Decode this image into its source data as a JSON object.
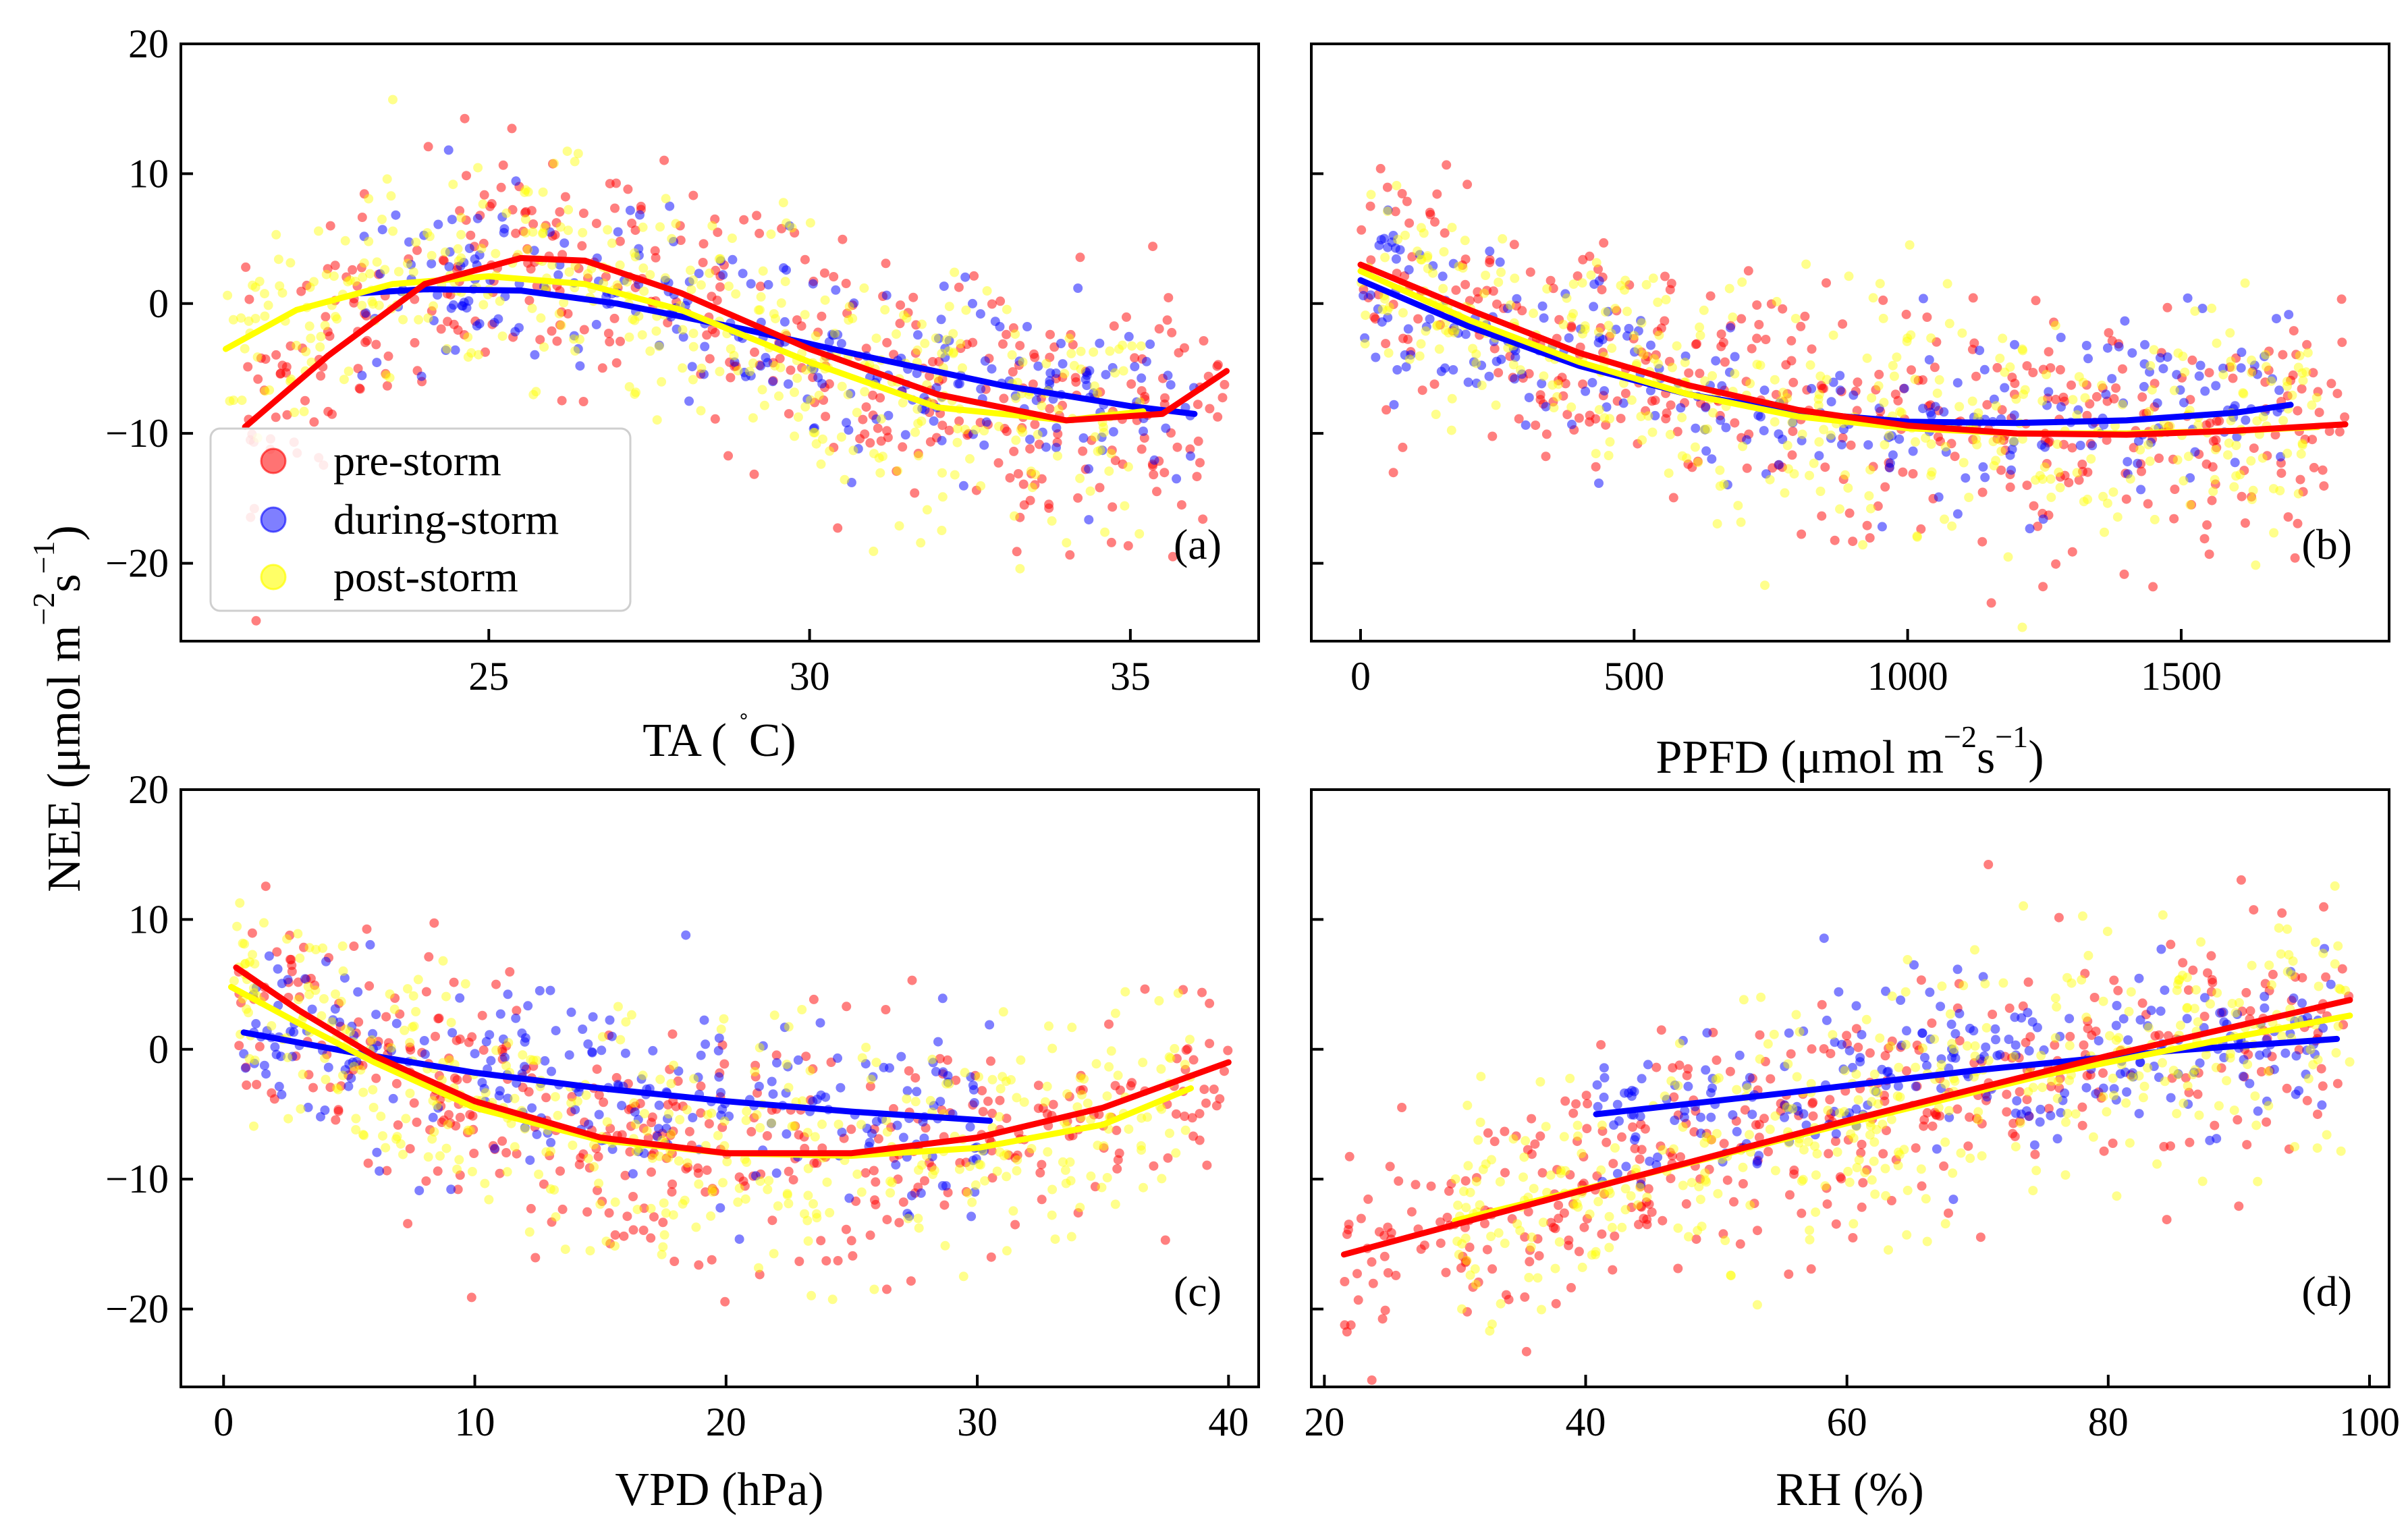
{
  "figure": {
    "ylabel": "NEE (μmol m⁻²s⁻¹)",
    "ylabel_parts": {
      "pre": "NEE (μmol m",
      "exp1": "−2",
      "mid": "s",
      "exp2": "−1",
      "post": ")"
    }
  },
  "legend": {
    "items": [
      {
        "label": "pre-storm",
        "color": "#ff0000"
      },
      {
        "label": "during-storm",
        "color": "#0000ff"
      },
      {
        "label": "post-storm",
        "color": "#ffff00"
      }
    ],
    "location": "lower-left of panel (a)"
  },
  "chart_data": [
    {
      "type": "scatter",
      "panel": "(a)",
      "xlabel": "TA ( ˚C)",
      "xlabel_parts": {
        "pre": "TA ( ",
        "deg": "˚",
        "post": "C)"
      },
      "ylabel": "NEE (μmol m⁻²s⁻¹)",
      "xlim": [
        20.2,
        37.0
      ],
      "ylim": [
        -26,
        20
      ],
      "xticks": [
        25,
        30,
        35
      ],
      "yticks": [
        20,
        10,
        0,
        -10,
        -20
      ],
      "series": [
        {
          "name": "pre-storm",
          "color": "#ff0000",
          "fit_x": [
            21.2,
            22.5,
            24.0,
            25.5,
            26.5,
            28.0,
            30.0,
            32.0,
            34.0,
            35.5,
            36.5
          ],
          "fit_y": [
            -9.5,
            -4.0,
            1.5,
            3.5,
            3.3,
            0.8,
            -3.5,
            -7.0,
            -9.0,
            -8.5,
            -5.2
          ]
        },
        {
          "name": "during-storm",
          "color": "#0000ff",
          "fit_x": [
            23.0,
            24.0,
            25.5,
            27.0,
            29.0,
            31.0,
            33.0,
            35.0,
            36.0
          ],
          "fit_y": [
            0.8,
            1.1,
            1.0,
            0.0,
            -2.0,
            -4.2,
            -6.3,
            -7.9,
            -8.5
          ]
        },
        {
          "name": "post-storm",
          "color": "#ffff00",
          "fit_x": [
            20.9,
            22.0,
            23.5,
            25.0,
            26.5,
            28.0,
            30.0,
            32.0,
            34.0,
            35.2
          ],
          "fit_y": [
            -3.5,
            -0.5,
            1.5,
            2.1,
            1.5,
            -0.5,
            -4.5,
            -8.0,
            -9.0,
            -8.3
          ]
        }
      ]
    },
    {
      "type": "scatter",
      "panel": "(b)",
      "xlabel": "PPFD (μmol m⁻²s⁻¹)",
      "xlabel_parts": {
        "pre": "PPFD (μmol  m",
        "exp1": "−2",
        "mid": "s",
        "exp2": "−1",
        "post": ")"
      },
      "ylabel": "NEE (μmol m⁻²s⁻¹)",
      "xlim": [
        -90,
        1880
      ],
      "ylim": [
        -26,
        20
      ],
      "xticks": [
        0,
        500,
        1000,
        1500
      ],
      "yticks": [
        20,
        10,
        0,
        -10,
        -20
      ],
      "series": [
        {
          "name": "pre-storm",
          "color": "#ff0000",
          "fit_x": [
            0,
            200,
            400,
            600,
            800,
            1000,
            1200,
            1400,
            1600,
            1800
          ],
          "fit_y": [
            3.0,
            -0.5,
            -3.8,
            -6.3,
            -8.2,
            -9.4,
            -10.0,
            -10.1,
            -9.8,
            -9.3
          ]
        },
        {
          "name": "during-storm",
          "color": "#0000ff",
          "fit_x": [
            0,
            200,
            400,
            600,
            800,
            1000,
            1200,
            1400,
            1600,
            1700
          ],
          "fit_y": [
            1.8,
            -1.8,
            -4.8,
            -7.0,
            -8.4,
            -9.1,
            -9.2,
            -9.0,
            -8.4,
            -7.8
          ]
        },
        {
          "name": "post-storm",
          "color": "#ffff00",
          "fit_x": [
            0,
            200,
            400,
            600,
            800,
            1000,
            1200,
            1400,
            1600,
            1750
          ],
          "fit_y": [
            2.5,
            -1.3,
            -4.5,
            -7.0,
            -8.7,
            -9.6,
            -10.0,
            -10.0,
            -9.8,
            -9.5
          ]
        }
      ]
    },
    {
      "type": "scatter",
      "panel": "(c)",
      "xlabel": "VPD (hPa)",
      "ylabel": "NEE (μmol m⁻²s⁻¹)",
      "xlim": [
        -1.7,
        41.2
      ],
      "ylim": [
        -26,
        20
      ],
      "xticks": [
        0,
        10,
        20,
        30,
        40
      ],
      "yticks": [
        20,
        10,
        0,
        -10,
        -20
      ],
      "series": [
        {
          "name": "pre-storm",
          "color": "#ff0000",
          "fit_x": [
            0.5,
            3,
            6,
            10,
            15,
            20,
            25,
            30,
            35,
            40
          ],
          "fit_y": [
            6.3,
            3.0,
            -0.5,
            -4.0,
            -6.8,
            -8.0,
            -8.0,
            -6.8,
            -4.5,
            -1.0
          ]
        },
        {
          "name": "during-storm",
          "color": "#0000ff",
          "fit_x": [
            0.8,
            5,
            10,
            15,
            20,
            25,
            30.5
          ],
          "fit_y": [
            1.3,
            -0.2,
            -1.8,
            -3.0,
            -4.0,
            -4.8,
            -5.5
          ]
        },
        {
          "name": "post-storm",
          "color": "#ffff00",
          "fit_x": [
            0.3,
            3,
            6,
            10,
            15,
            20,
            25,
            30,
            35,
            38.5
          ],
          "fit_y": [
            4.8,
            2.0,
            -1.0,
            -4.5,
            -7.0,
            -8.0,
            -8.2,
            -7.6,
            -5.8,
            -3.0
          ]
        }
      ]
    },
    {
      "type": "scatter",
      "panel": "(d)",
      "xlabel": "RH (%)",
      "ylabel": "NEE (μmol m⁻²s⁻¹)",
      "xlim": [
        19.0,
        101.5
      ],
      "ylim": [
        -26,
        20
      ],
      "xticks": [
        20,
        40,
        60,
        80,
        100
      ],
      "yticks": [
        20,
        10,
        0,
        -10,
        -20
      ],
      "series": [
        {
          "name": "pre-storm",
          "color": "#ff0000",
          "fit_x": [
            21.5,
            40,
            60,
            80,
            98.5
          ],
          "fit_y": [
            -15.8,
            -10.8,
            -5.5,
            -0.5,
            3.8
          ]
        },
        {
          "name": "during-storm",
          "color": "#0000ff",
          "fit_x": [
            40.8,
            55,
            70,
            85,
            97.5
          ],
          "fit_y": [
            -5.0,
            -3.4,
            -1.6,
            -0.1,
            0.8
          ]
        },
        {
          "name": "post-storm",
          "color": "#ffff00",
          "fit_x": [
            30,
            45,
            60,
            75,
            90,
            98.5
          ],
          "fit_y": [
            -13.2,
            -9.5,
            -5.7,
            -2.0,
            1.0,
            2.6
          ]
        }
      ]
    }
  ]
}
